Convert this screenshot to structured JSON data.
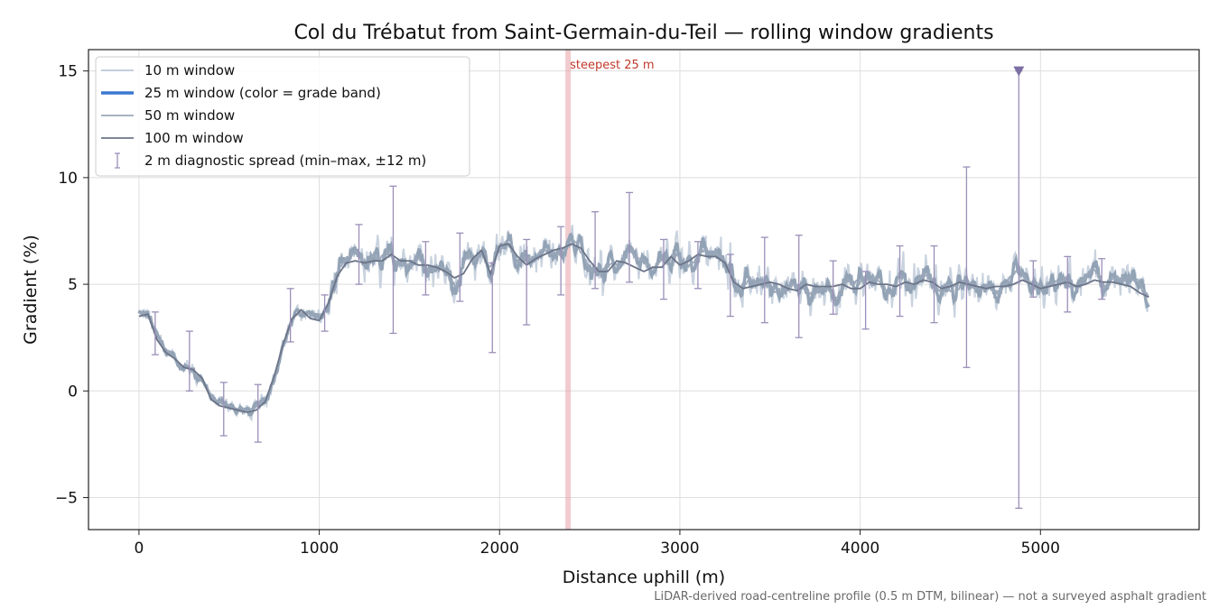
{
  "chart_data": {
    "type": "line",
    "title": "Col du Trébatut from Saint-Germain-du-Teil — rolling window gradients",
    "xlabel": "Distance uphill (m)",
    "ylabel": "Gradient (%)",
    "xlim": [
      -280,
      5880
    ],
    "ylim": [
      -6.5,
      16.0
    ],
    "xticks": [
      0,
      1000,
      2000,
      3000,
      4000,
      5000
    ],
    "yticks": [
      -5,
      0,
      5,
      10,
      15
    ],
    "xtick_labels": [
      "0",
      "1000",
      "2000",
      "3000",
      "4000",
      "5000"
    ],
    "ytick_labels": [
      "−5",
      "0",
      "5",
      "10",
      "15"
    ],
    "grid": true,
    "legend_position": "top-left",
    "colors": {
      "w10": "#c3cedb",
      "w25": "#93a3b6",
      "w25_legend": "#3a78d0",
      "w50": "#9aa7b9",
      "w100": "#6b7488",
      "errorbar": "#9b8fb8",
      "marker": "#7d6fa3",
      "steepest": "#e8a0a6",
      "steepest_text": "#c0392b"
    },
    "legend": [
      {
        "key": "w10",
        "label": "10 m window"
      },
      {
        "key": "w25",
        "label": "25 m window (color = grade band)"
      },
      {
        "key": "w50",
        "label": "50 m window"
      },
      {
        "key": "w100",
        "label": "100 m window"
      },
      {
        "key": "errorbar",
        "label": "2 m diagnostic spread (min–max, ±12 m)"
      }
    ],
    "steepest_25m": {
      "x": 2380,
      "label": "steepest 25 m"
    },
    "max_marker": {
      "x": 4880,
      "y": 15.0
    },
    "series_100m": {
      "name": "100 m window",
      "x": [
        0,
        50,
        100,
        150,
        200,
        250,
        300,
        350,
        400,
        450,
        500,
        550,
        600,
        650,
        700,
        750,
        800,
        850,
        900,
        950,
        1000,
        1050,
        1100,
        1150,
        1200,
        1250,
        1300,
        1350,
        1400,
        1450,
        1500,
        1550,
        1600,
        1650,
        1700,
        1750,
        1800,
        1850,
        1900,
        1950,
        2000,
        2050,
        2100,
        2150,
        2200,
        2250,
        2300,
        2350,
        2400,
        2450,
        2500,
        2550,
        2600,
        2650,
        2700,
        2750,
        2800,
        2850,
        2900,
        2950,
        3000,
        3050,
        3100,
        3150,
        3200,
        3250,
        3300,
        3350,
        3400,
        3450,
        3500,
        3550,
        3600,
        3650,
        3700,
        3750,
        3800,
        3850,
        3900,
        3950,
        4000,
        4050,
        4100,
        4150,
        4200,
        4250,
        4300,
        4350,
        4400,
        4450,
        4500,
        4550,
        4600,
        4650,
        4700,
        4750,
        4800,
        4850,
        4900,
        4950,
        5000,
        5050,
        5100,
        5150,
        5200,
        5250,
        5300,
        5350,
        5400,
        5450,
        5500,
        5550,
        5600
      ],
      "y": [
        3.5,
        3.6,
        2.4,
        1.8,
        1.5,
        1.1,
        1.0,
        0.6,
        -0.4,
        -0.7,
        -0.8,
        -0.9,
        -1.0,
        -0.9,
        -0.5,
        0.7,
        2.2,
        3.4,
        3.8,
        3.4,
        3.3,
        4.1,
        5.4,
        6.0,
        6.1,
        6.0,
        6.1,
        6.1,
        6.4,
        6.1,
        6.1,
        5.9,
        5.9,
        5.8,
        5.6,
        5.3,
        5.5,
        6.2,
        6.6,
        5.5,
        6.8,
        6.9,
        6.3,
        5.9,
        6.2,
        6.4,
        6.6,
        6.7,
        6.9,
        6.7,
        6.1,
        5.6,
        5.6,
        6.1,
        6.0,
        5.8,
        5.6,
        5.8,
        5.8,
        6.3,
        5.9,
        6.1,
        6.4,
        6.3,
        6.3,
        6.0,
        5.1,
        4.8,
        4.9,
        5.0,
        5.1,
        5.0,
        4.8,
        4.7,
        5.0,
        4.9,
        4.9,
        4.9,
        5.0,
        4.8,
        4.8,
        5.1,
        5.0,
        5.0,
        4.9,
        5.1,
        5.0,
        5.2,
        5.1,
        4.8,
        4.9,
        5.1,
        5.0,
        4.9,
        4.8,
        4.9,
        4.9,
        5.0,
        5.2,
        5.0,
        4.8,
        4.9,
        5.0,
        5.1,
        4.9,
        5.0,
        5.2,
        5.1,
        5.1,
        5.0,
        4.9,
        4.6,
        4.4
      ]
    },
    "errorbars": [
      {
        "x": 90,
        "low": 1.7,
        "high": 3.7
      },
      {
        "x": 280,
        "low": 0.0,
        "high": 2.8
      },
      {
        "x": 470,
        "low": -2.1,
        "high": 0.4
      },
      {
        "x": 660,
        "low": -2.4,
        "high": 0.3
      },
      {
        "x": 840,
        "low": 2.3,
        "high": 4.8
      },
      {
        "x": 1030,
        "low": 2.8,
        "high": 4.5
      },
      {
        "x": 1220,
        "low": 5.0,
        "high": 7.8
      },
      {
        "x": 1410,
        "low": 2.7,
        "high": 9.6
      },
      {
        "x": 1590,
        "low": 4.5,
        "high": 7.0
      },
      {
        "x": 1780,
        "low": 4.2,
        "high": 7.4
      },
      {
        "x": 1960,
        "low": 1.8,
        "high": 6.0
      },
      {
        "x": 2150,
        "low": 3.1,
        "high": 7.1
      },
      {
        "x": 2340,
        "low": 4.5,
        "high": 7.7
      },
      {
        "x": 2530,
        "low": 4.8,
        "high": 8.4
      },
      {
        "x": 2720,
        "low": 5.1,
        "high": 9.3
      },
      {
        "x": 2910,
        "low": 4.3,
        "high": 7.1
      },
      {
        "x": 3100,
        "low": 4.8,
        "high": 7.0
      },
      {
        "x": 3280,
        "low": 3.5,
        "high": 6.4
      },
      {
        "x": 3470,
        "low": 3.2,
        "high": 7.2
      },
      {
        "x": 3660,
        "low": 2.5,
        "high": 7.3
      },
      {
        "x": 3850,
        "low": 3.6,
        "high": 6.1
      },
      {
        "x": 4030,
        "low": 2.9,
        "high": 5.6
      },
      {
        "x": 4220,
        "low": 3.5,
        "high": 6.8
      },
      {
        "x": 4410,
        "low": 3.2,
        "high": 6.8
      },
      {
        "x": 4590,
        "low": 1.1,
        "high": 10.5
      },
      {
        "x": 4880,
        "low": -5.5,
        "high": 15.0
      },
      {
        "x": 4960,
        "low": 4.4,
        "high": 6.1
      },
      {
        "x": 5150,
        "low": 3.7,
        "high": 6.3
      },
      {
        "x": 5340,
        "low": 4.3,
        "high": 6.2
      }
    ]
  },
  "footnote": "LiDAR-derived road-centreline profile (0.5 m DTM, bilinear) — not a surveyed asphalt gradient"
}
